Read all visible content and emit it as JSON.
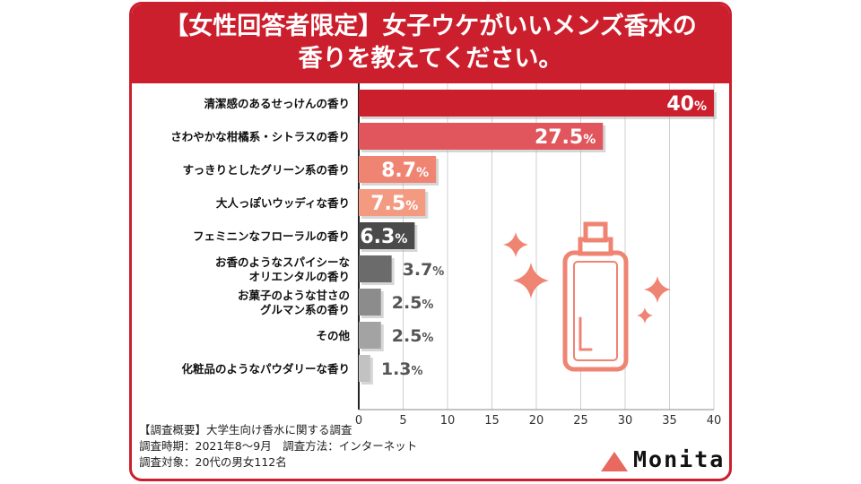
{
  "title_line1": "【女性回答者限定】女子ウケがいいメンズ香水の",
  "title_line2": "香りを教えてください。",
  "chart_data": {
    "type": "bar",
    "orientation": "horizontal",
    "categories": [
      "清潔感のあるせっけんの香り",
      "さわやかな柑橘系・シトラスの香り",
      "すっきりとしたグリーン系の香り",
      "大人っぽいウッディな香り",
      "フェミニンなフローラルの香り",
      "お香のようなスパイシーな\nオリエンタルの香り",
      "お菓子のような甘さの\nグルマン系の香り",
      "その他",
      "化粧品のようなパウダリーな香り"
    ],
    "values": [
      40,
      27.5,
      8.7,
      7.5,
      6.3,
      3.7,
      2.5,
      2.5,
      1.3
    ],
    "value_labels": [
      "40",
      "27.5",
      "8.7",
      "7.5",
      "6.3",
      "3.7",
      "2.5",
      "2.5",
      "1.3"
    ],
    "unit": "%",
    "xticks": [
      "0",
      "5",
      "10",
      "15",
      "20",
      "25",
      "30",
      "35",
      "40"
    ],
    "xlim": [
      0,
      40
    ],
    "grid": true,
    "colors": [
      "#cc1f2d",
      "#e0565c",
      "#ef8473",
      "#f39a80",
      "#4a4a4a",
      "#6b6b6b",
      "#8c8c8c",
      "#a3a3a3",
      "#c2c2c2"
    ]
  },
  "footnote": {
    "line1": "【調査概要】大学生向け香水に関する調査",
    "line2": "調査時期：2021年8～9月　調査方法：インターネット",
    "line3": "調査対象：20代の男女112名"
  },
  "brand": {
    "name": "Monita",
    "logo_color": "#e8695f"
  },
  "illustration": {
    "icon": "perfume-bottle-icon",
    "color": "#ef8473"
  }
}
